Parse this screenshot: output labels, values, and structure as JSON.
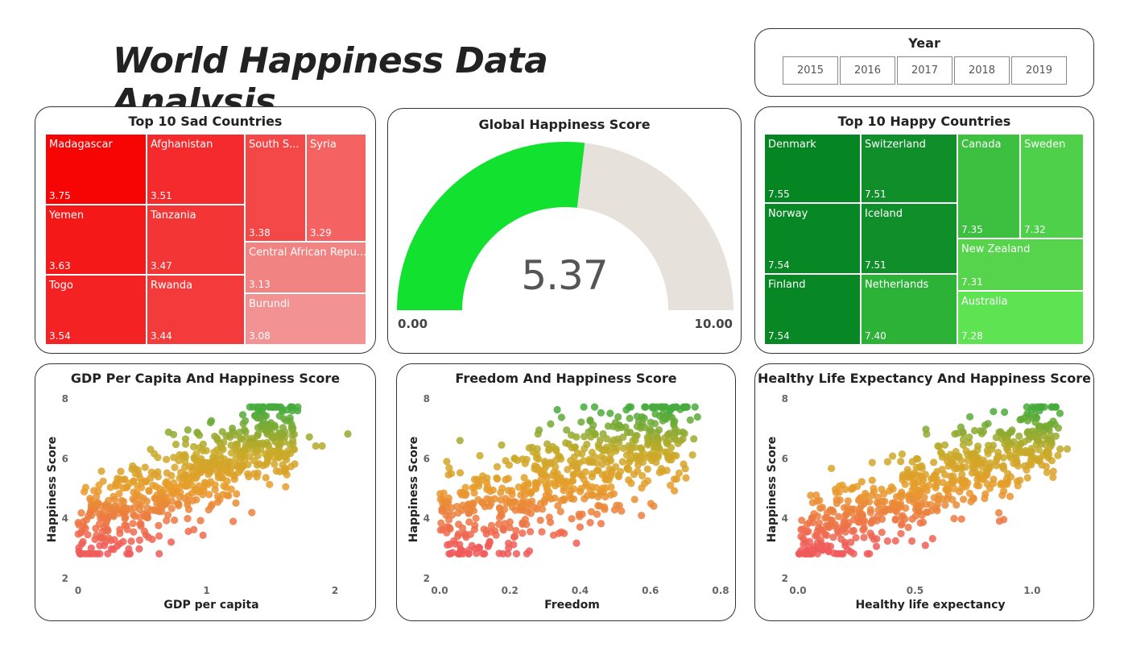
{
  "title": "World Happiness Data Analysis",
  "year_slicer": {
    "title": "Year",
    "options": [
      "2015",
      "2016",
      "2017",
      "2018",
      "2019"
    ]
  },
  "sad_countries": {
    "title": "Top 10 Sad Countries",
    "items": [
      {
        "name": "Madagascar",
        "value": "3.75",
        "color": "#f70505"
      },
      {
        "name": "Afghanistan",
        "value": "3.51",
        "color": "#f42a2d"
      },
      {
        "name": "South S...",
        "value": "3.38",
        "color": "#f44747"
      },
      {
        "name": "Syria",
        "value": "3.29",
        "color": "#f46262"
      },
      {
        "name": "Yemen",
        "value": "3.63",
        "color": "#f41818"
      },
      {
        "name": "Tanzania",
        "value": "3.47",
        "color": "#f43535"
      },
      {
        "name": "Central African Repu...",
        "value": "3.13",
        "color": "#f28383"
      },
      {
        "name": "Togo",
        "value": "3.54",
        "color": "#f42222"
      },
      {
        "name": "Rwanda",
        "value": "3.44",
        "color": "#f43b3b"
      },
      {
        "name": "Burundi",
        "value": "3.08",
        "color": "#f29292"
      }
    ]
  },
  "gauge": {
    "title": "Global Happiness Score",
    "value": 5.37,
    "value_label": "5.37",
    "min_label": "0.00",
    "max_label": "10.00",
    "min": 0,
    "max": 10,
    "fill_color": "#12e22f",
    "track_color": "#e6e1db"
  },
  "happy_countries": {
    "title": "Top 10 Happy Countries",
    "items": [
      {
        "name": "Denmark",
        "value": "7.55",
        "color": "#058623"
      },
      {
        "name": "Switzerland",
        "value": "7.51",
        "color": "#0f8e2a"
      },
      {
        "name": "Canada",
        "value": "7.35",
        "color": "#3dc040"
      },
      {
        "name": "Sweden",
        "value": "7.32",
        "color": "#4fd04a"
      },
      {
        "name": "Norway",
        "value": "7.54",
        "color": "#078824"
      },
      {
        "name": "Iceland",
        "value": "7.51",
        "color": "#0f8e2a"
      },
      {
        "name": "New Zealand",
        "value": "7.31",
        "color": "#55d44c"
      },
      {
        "name": "Finland",
        "value": "7.54",
        "color": "#078824"
      },
      {
        "name": "Netherlands",
        "value": "7.40",
        "color": "#2db238"
      },
      {
        "name": "Australia",
        "value": "7.28",
        "color": "#5ee352"
      }
    ]
  },
  "chart_data": [
    {
      "type": "scatter",
      "title": "GDP Per Capita And Happiness Score",
      "xlabel": "GDP per capita",
      "ylabel": "Happiness Score",
      "xlim": [
        0,
        2.2
      ],
      "ylim": [
        2,
        8
      ],
      "xticks": [
        "0",
        "1",
        "2"
      ],
      "xtick_values": [
        0,
        1,
        2
      ],
      "yticks": [
        "2",
        "4",
        "6",
        "8"
      ],
      "ytick_values": [
        2,
        4,
        6,
        8
      ],
      "trend": {
        "slope": 2.2,
        "intercept": 3.4,
        "x_min": 0,
        "x_max": 1.7,
        "spread": 0.75
      },
      "n": 620,
      "outliers": [
        [
          2.1,
          6.8
        ],
        [
          1.85,
          6.4
        ],
        [
          1.9,
          6.4
        ],
        [
          1.8,
          6.7
        ]
      ]
    },
    {
      "type": "scatter",
      "title": "Freedom And Happiness Score",
      "xlabel": "Freedom",
      "ylabel": "Happiness Score",
      "xlim": [
        0,
        0.8
      ],
      "ylim": [
        2,
        8
      ],
      "xticks": [
        "0.0",
        "0.2",
        "0.4",
        "0.6",
        "0.8"
      ],
      "xtick_values": [
        0,
        0.2,
        0.4,
        0.6,
        0.8
      ],
      "yticks": [
        "2",
        "4",
        "6",
        "8"
      ],
      "ytick_values": [
        2,
        4,
        6,
        8
      ],
      "trend": {
        "slope": 4.5,
        "intercept": 3.7,
        "x_min": 0,
        "x_max": 0.7,
        "spread": 0.95
      },
      "n": 620,
      "outliers": [
        [
          0.28,
          6.8
        ],
        [
          0.72,
          6.1
        ]
      ]
    },
    {
      "type": "scatter",
      "title": "Healthy Life Expectancy And Happiness Score",
      "xlabel": "Healthy life expectancy",
      "ylabel": "Happiness Score",
      "xlim": [
        0,
        1.2
      ],
      "ylim": [
        2,
        8
      ],
      "xticks": [
        "0.0",
        "0.5",
        "1.0"
      ],
      "xtick_values": [
        0,
        0.5,
        1.0
      ],
      "yticks": [
        "2",
        "4",
        "6",
        "8"
      ],
      "ytick_values": [
        2,
        4,
        6,
        8
      ],
      "trend": {
        "slope": 3.3,
        "intercept": 3.2,
        "x_min": 0,
        "x_max": 1.1,
        "spread": 0.75
      },
      "n": 620,
      "outliers": [
        [
          0.67,
          6.8
        ],
        [
          1.15,
          6.3
        ],
        [
          0.05,
          3.0
        ]
      ]
    }
  ]
}
